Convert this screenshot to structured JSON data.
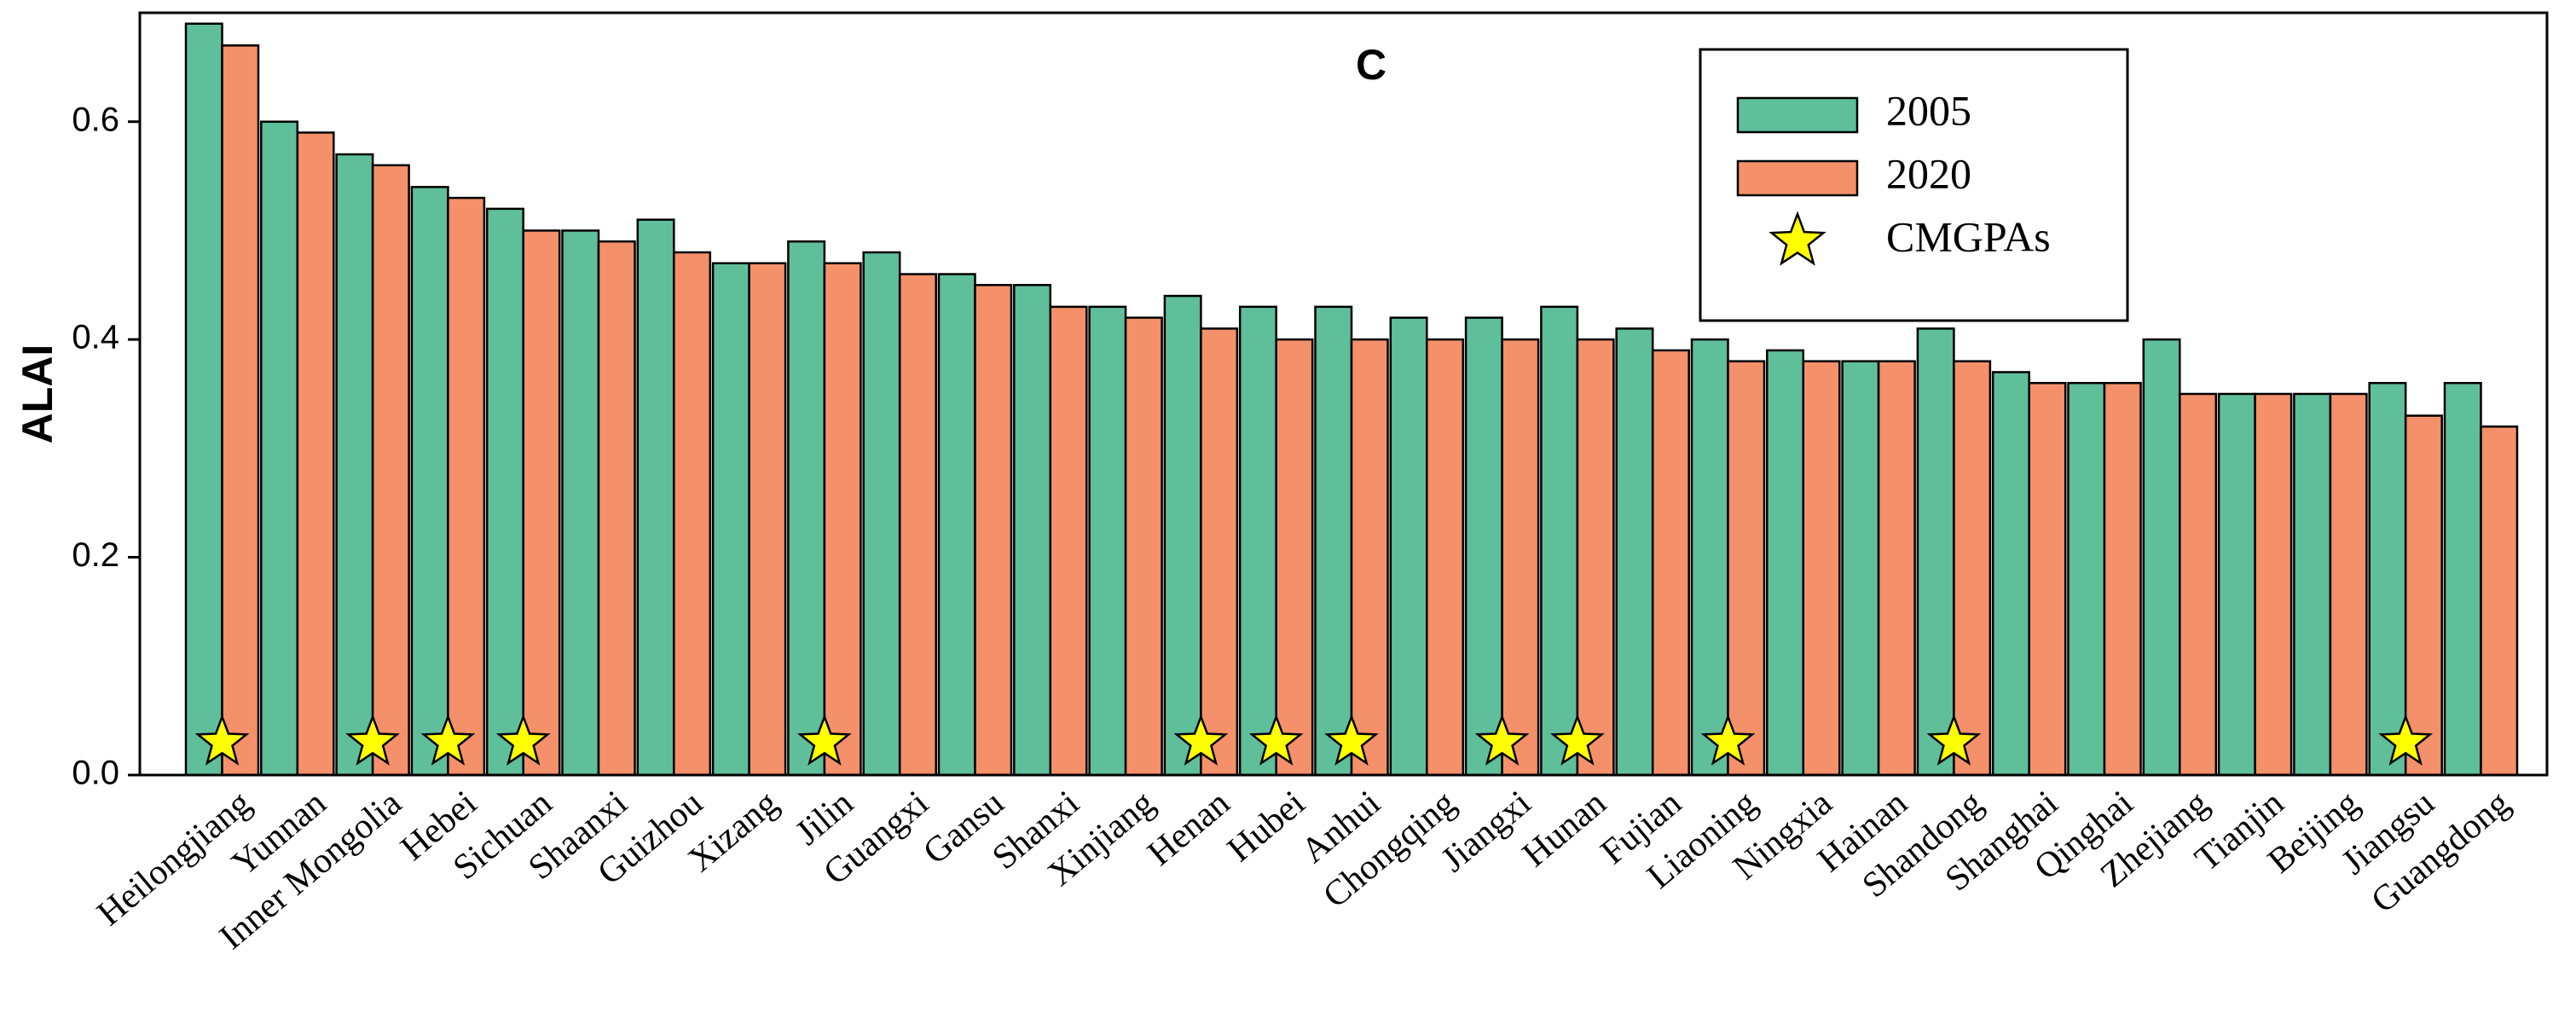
{
  "chart_data": {
    "type": "bar",
    "title": "C",
    "y_label": "ALAI",
    "categories": [
      "Heilongjiang",
      "Yunnan",
      "Inner Mongolia",
      "Hebei",
      "Sichuan",
      "Shaanxi",
      "Guizhou",
      "Xizang",
      "Jilin",
      "Guangxi",
      "Gansu",
      "Shanxi",
      "Xinjiang",
      "Henan",
      "Hubei",
      "Anhui",
      "Chongqing",
      "Jiangxi",
      "Hunan",
      "Fujian",
      "Liaoning",
      "Ningxia",
      "Hainan",
      "Shandong",
      "Shanghai",
      "Qinghai",
      "Zhejiang",
      "Tianjin",
      "Beijing",
      "Jiangsu",
      "Guangdong"
    ],
    "series": [
      {
        "name": "2005",
        "color": "#5fbf9a",
        "values": [
          0.69,
          0.6,
          0.57,
          0.54,
          0.52,
          0.5,
          0.51,
          0.47,
          0.49,
          0.48,
          0.46,
          0.45,
          0.43,
          0.44,
          0.43,
          0.43,
          0.42,
          0.42,
          0.43,
          0.41,
          0.4,
          0.39,
          0.38,
          0.41,
          0.37,
          0.36,
          0.4,
          0.35,
          0.35,
          0.36,
          0.36
        ]
      },
      {
        "name": "2020",
        "color": "#f4906a",
        "values": [
          0.67,
          0.59,
          0.56,
          0.53,
          0.5,
          0.49,
          0.48,
          0.47,
          0.47,
          0.46,
          0.45,
          0.43,
          0.42,
          0.41,
          0.4,
          0.4,
          0.4,
          0.4,
          0.4,
          0.39,
          0.38,
          0.38,
          0.38,
          0.38,
          0.36,
          0.36,
          0.35,
          0.35,
          0.35,
          0.33,
          0.32
        ]
      },
      {
        "name": "CMGPAs",
        "color": "#ffff00",
        "marker": "star",
        "values": [
          0.03,
          null,
          0.03,
          0.03,
          0.03,
          null,
          null,
          null,
          0.03,
          null,
          null,
          null,
          null,
          0.03,
          0.03,
          0.03,
          null,
          0.03,
          0.03,
          null,
          0.03,
          null,
          null,
          0.03,
          null,
          null,
          null,
          null,
          null,
          0.03,
          null
        ]
      }
    ],
    "ylim": [
      0,
      0.7
    ],
    "yticks": [
      {
        "value": 0,
        "label": "0.0"
      },
      0.2,
      0.4,
      0.6
    ]
  }
}
